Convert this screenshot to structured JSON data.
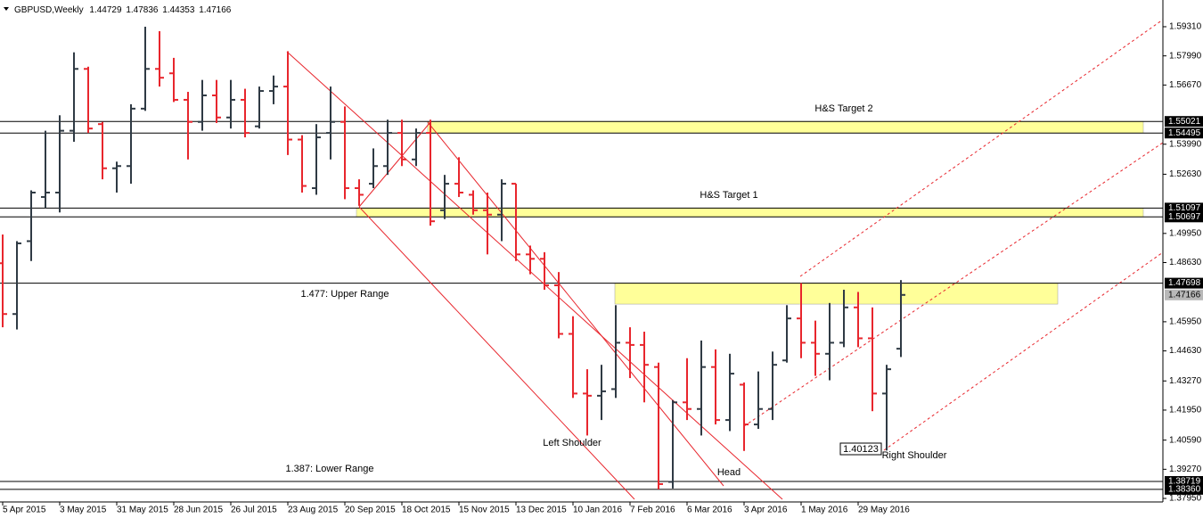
{
  "chart_data": {
    "type": "ohlc",
    "symbol": "GBPUSD,Weekly",
    "categories": [
      "5 Apr 2015",
      null,
      null,
      null,
      "3 May 2015",
      null,
      null,
      null,
      "31 May 2015",
      null,
      null,
      null,
      "28 Jun 2015",
      null,
      null,
      null,
      "26 Jul 2015",
      null,
      null,
      null,
      "23 Aug 2015",
      null,
      null,
      null,
      "20 Sep 2015",
      null,
      null,
      null,
      "18 Oct 2015",
      null,
      null,
      null,
      "15 Nov 2015",
      null,
      null,
      null,
      "13 Dec 2015",
      null,
      null,
      null,
      "10 Jan 2016",
      null,
      null,
      null,
      "7 Feb 2016",
      null,
      null,
      null,
      "6 Mar 2016",
      null,
      null,
      null,
      "3 Apr 2016",
      null,
      null,
      null,
      "1 May 2016",
      null,
      null,
      null,
      "29 May 2016",
      null,
      null,
      null
    ],
    "open": [
      1.486,
      1.463,
      1.496,
      1.516,
      1.518,
      1.546,
      1.574,
      1.549,
      1.529,
      1.53,
      1.556,
      1.574,
      1.572,
      1.56,
      1.55,
      1.562,
      1.552,
      1.56,
      1.548,
      1.564,
      1.566,
      1.542,
      1.52,
      1.545,
      1.55,
      1.52,
      1.522,
      1.53,
      1.545,
      1.533,
      1.545,
      1.51,
      1.522,
      1.517,
      1.51,
      1.508,
      1.522,
      1.49,
      1.488,
      1.476,
      1.454,
      1.427,
      1.426,
      1.429,
      1.45,
      1.449,
      1.439,
      1.387,
      1.423,
      1.42,
      1.439,
      1.415,
      1.431,
      1.413,
      1.42,
      1.442,
      1.461,
      1.45,
      1.445,
      1.45,
      1.466,
      1.452,
      1.427,
      1.44729
    ],
    "high": [
      1.499,
      1.496,
      1.519,
      1.546,
      1.553,
      1.5815,
      1.575,
      1.55,
      1.532,
      1.558,
      1.5931,
      1.5911,
      1.579,
      1.5636,
      1.569,
      1.569,
      1.569,
      1.565,
      1.566,
      1.571,
      1.582,
      1.544,
      1.549,
      1.566,
      1.557,
      1.524,
      1.538,
      1.551,
      1.551,
      1.547,
      1.551,
      1.526,
      1.534,
      1.519,
      1.518,
      1.524,
      1.522,
      1.494,
      1.491,
      1.482,
      1.462,
      1.438,
      1.44,
      1.467,
      1.457,
      1.455,
      1.441,
      1.424,
      1.443,
      1.451,
      1.447,
      1.445,
      1.432,
      1.437,
      1.446,
      1.467,
      1.477,
      1.46,
      1.468,
      1.474,
      1.473,
      1.466,
      1.44,
      1.47836
    ],
    "low": [
      1.457,
      1.456,
      1.487,
      1.511,
      1.509,
      1.541,
      1.545,
      1.524,
      1.518,
      1.522,
      1.555,
      1.566,
      1.559,
      1.533,
      1.546,
      1.5495,
      1.547,
      1.543,
      1.547,
      1.558,
      1.535,
      1.518,
      1.517,
      1.533,
      1.515,
      1.512,
      1.52,
      1.526,
      1.53,
      1.53,
      1.503,
      1.506,
      1.516,
      1.508,
      1.49,
      1.496,
      1.487,
      1.481,
      1.474,
      1.452,
      1.425,
      1.408,
      1.415,
      1.425,
      1.434,
      1.423,
      1.3836,
      1.384,
      1.415,
      1.408,
      1.413,
      1.41,
      1.401,
      1.411,
      1.415,
      1.441,
      1.443,
      1.435,
      1.433,
      1.448,
      1.448,
      1.419,
      1.4012,
      1.44353
    ],
    "close": [
      1.463,
      1.495,
      1.518,
      1.518,
      1.546,
      1.574,
      1.547,
      1.529,
      1.53,
      1.556,
      1.574,
      1.57,
      1.56,
      1.55,
      1.562,
      1.552,
      1.56,
      1.545,
      1.564,
      1.566,
      1.542,
      1.521,
      1.543,
      1.55,
      1.52,
      1.517,
      1.53,
      1.545,
      1.533,
      1.545,
      1.505,
      1.522,
      1.518,
      1.51,
      1.508,
      1.522,
      1.49,
      1.488,
      1.476,
      1.454,
      1.427,
      1.426,
      1.428,
      1.45,
      1.449,
      1.44,
      1.386,
      1.423,
      1.42,
      1.439,
      1.415,
      1.436,
      1.413,
      1.42,
      1.44,
      1.461,
      1.45,
      1.445,
      1.45,
      1.466,
      1.452,
      1.427,
      1.438,
      1.47166
    ],
    "up_color": "#2f3a44",
    "down_color": "#e8262d",
    "ylim": [
      1.3779,
      1.6052
    ],
    "yticks": [
      {
        "value": 1.5931,
        "label": "1.59310"
      },
      {
        "value": 1.5799,
        "label": "1.57990"
      },
      {
        "value": 1.5667,
        "label": "1.56670"
      },
      {
        "value": 1.5399,
        "label": "1.53990"
      },
      {
        "value": 1.5263,
        "label": "1.52630"
      },
      {
        "value": 1.4995,
        "label": "1.49950"
      },
      {
        "value": 1.4863,
        "label": "1.48630"
      },
      {
        "value": 1.4595,
        "label": "1.45950"
      },
      {
        "value": 1.4463,
        "label": "1.44630"
      },
      {
        "value": 1.4327,
        "label": "1.43270"
      },
      {
        "value": 1.4195,
        "label": "1.41950"
      },
      {
        "value": 1.4059,
        "label": "1.40590"
      },
      {
        "value": 1.3927,
        "label": "1.39270"
      },
      {
        "value": 1.3795,
        "label": "1.37950"
      }
    ],
    "levels": [
      1.55021,
      1.54495,
      1.51097,
      1.50697,
      1.47698,
      1.38719,
      {
        "value": 1.3836,
        "label": "1.38360"
      }
    ],
    "zones": [
      {
        "low": 1.54495,
        "high": 1.55021
      },
      {
        "low": 1.50697,
        "high": 1.51097
      },
      {
        "low": 1.4675,
        "high": 1.47698
      }
    ],
    "zone_color": "#ffff99",
    "annotations": [
      "H&S Target 2",
      "H&S Target 1",
      "1.477: Upper Range",
      "1.387: Lower Range",
      "Left Shoulder",
      "Head",
      "Right Shoulder"
    ],
    "price_box": 1.40123
  }
}
